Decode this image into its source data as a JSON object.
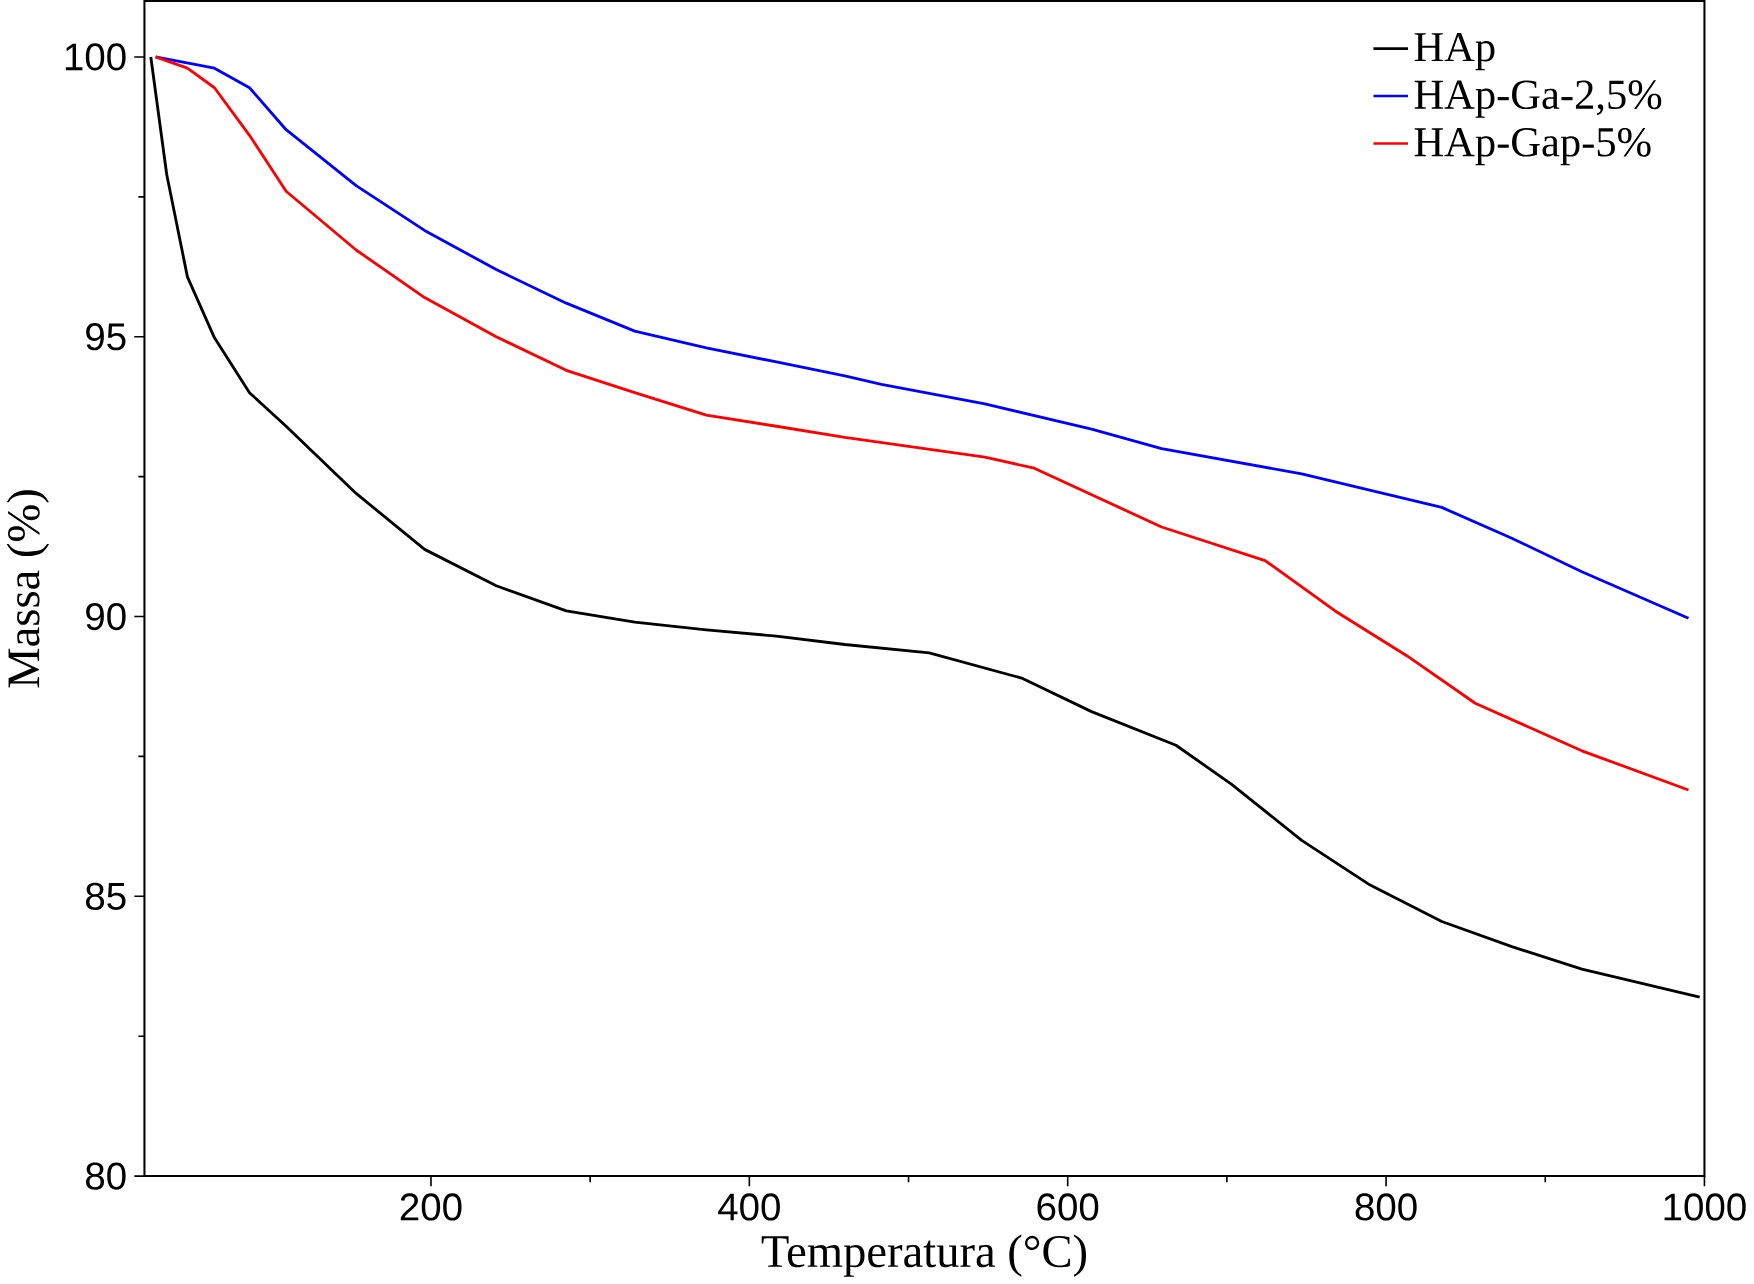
{
  "chart_data": {
    "type": "line",
    "xlabel": "Temperatura (°C)",
    "ylabel": "Massa (%)",
    "xlim": [
      20,
      1000
    ],
    "ylim": [
      80,
      101
    ],
    "xticks": [
      200,
      400,
      600,
      800,
      1000
    ],
    "yticks": [
      80,
      85,
      90,
      95,
      100
    ],
    "legend": "top right",
    "grid": false,
    "series": [
      {
        "name": "HAp",
        "color": "#000000",
        "x": [
          24,
          34,
          47,
          64,
          86,
          109,
          153,
          196,
          241,
          285,
          328,
          373,
          417,
          460,
          513,
          571,
          615,
          668,
          703,
          747,
          790,
          835,
          879,
          923,
          997
        ],
        "values": [
          100,
          97.9,
          96.07,
          94.98,
          94.0,
          93.4,
          92.2,
          91.2,
          90.55,
          90.1,
          89.9,
          89.76,
          89.65,
          89.5,
          89.35,
          88.9,
          88.3,
          87.7,
          87.0,
          86.0,
          85.2,
          84.55,
          84.1,
          83.7,
          83.2
        ]
      },
      {
        "name": "HAp-Ga-2,5%",
        "color": "#0000ff",
        "x": [
          27,
          64,
          86,
          109,
          153,
          196,
          241,
          285,
          328,
          373,
          417,
          460,
          483,
          548,
          615,
          659,
          747,
          835,
          879,
          923,
          990
        ],
        "values": [
          100,
          99.8,
          99.45,
          98.7,
          97.7,
          96.9,
          96.2,
          95.6,
          95.1,
          94.8,
          94.55,
          94.3,
          94.15,
          93.8,
          93.35,
          93.0,
          92.55,
          91.95,
          91.4,
          90.8,
          89.97
        ]
      },
      {
        "name": "HAp-Gap-5%",
        "color": "#ff0000",
        "x": [
          27,
          47,
          64,
          86,
          109,
          153,
          196,
          241,
          285,
          328,
          373,
          417,
          460,
          548,
          579,
          659,
          724,
          768,
          813,
          856,
          923,
          990
        ],
        "values": [
          100,
          99.8,
          99.45,
          98.6,
          97.6,
          96.55,
          95.7,
          95.0,
          94.4,
          94.0,
          93.6,
          93.4,
          93.2,
          92.85,
          92.65,
          91.6,
          91.0,
          90.1,
          89.3,
          88.45,
          87.6,
          86.9
        ]
      }
    ]
  }
}
